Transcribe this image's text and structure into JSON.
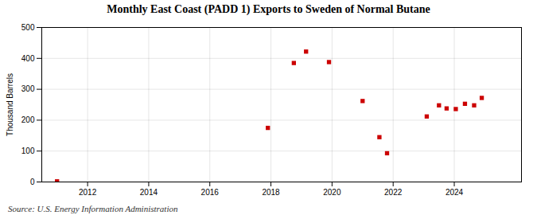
{
  "chart_data": {
    "type": "scatter",
    "title": "Monthly East Coast (PADD 1) Exports to Sweden of Normal Butane",
    "ylabel": "Thousand Barrels",
    "source": "Source: U.S. Energy Information Administration",
    "x": [
      2011.0,
      2017.9,
      2018.75,
      2019.15,
      2019.9,
      2021.0,
      2021.55,
      2021.8,
      2023.1,
      2023.5,
      2023.75,
      2024.05,
      2024.35,
      2024.65,
      2024.9
    ],
    "values": [
      2,
      175,
      385,
      422,
      388,
      262,
      145,
      93,
      212,
      248,
      238,
      236,
      253,
      248,
      272
    ],
    "color": "#cc0000",
    "marker": "square",
    "xlim": [
      2010.5,
      2026.2
    ],
    "xticks": [
      2012,
      2014,
      2016,
      2018,
      2020,
      2022,
      2024
    ],
    "ylim": [
      0,
      500
    ],
    "yticks": [
      0,
      100,
      200,
      300,
      400,
      500
    ],
    "grid": true
  }
}
